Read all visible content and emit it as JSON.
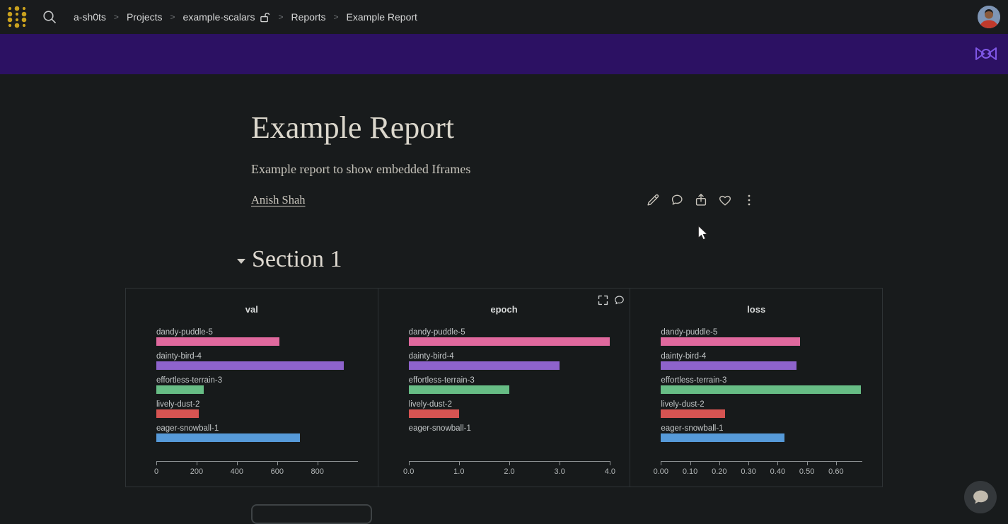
{
  "topnav": {
    "logo_icon": "wandb-dots-logo",
    "search_icon": "search-icon",
    "breadcrumb": [
      {
        "label": "a-sh0ts"
      },
      {
        "label": "Projects"
      },
      {
        "label": "example-scalars",
        "suffix_icon": "unlock-icon"
      },
      {
        "label": "Reports"
      },
      {
        "label": "Example Report",
        "current": true
      }
    ],
    "avatar_icon": "user-avatar"
  },
  "banner": {
    "background": "#2c1163",
    "icon": "wandb-bowtie-icon",
    "icon_color": "#7f57e6"
  },
  "report": {
    "title": "Example Report",
    "subtitle": "Example report to show embedded Iframes",
    "author": "Anish Shah",
    "actions": [
      {
        "name": "edit",
        "icon": "pencil-icon"
      },
      {
        "name": "comment",
        "icon": "comment-icon"
      },
      {
        "name": "share",
        "icon": "share-icon"
      },
      {
        "name": "like",
        "icon": "heart-icon"
      },
      {
        "name": "more",
        "icon": "kebab-icon"
      }
    ]
  },
  "section": {
    "title": "Section 1",
    "collapse_icon": "caret-down-icon"
  },
  "runs": [
    {
      "name": "dandy-puddle-5",
      "color": "#e0699e"
    },
    {
      "name": "dainty-bird-4",
      "color": "#8e63cc"
    },
    {
      "name": "effortless-terrain-3",
      "color": "#67bd85"
    },
    {
      "name": "lively-dust-2",
      "color": "#d65452"
    },
    {
      "name": "eager-snowball-1",
      "color": "#569ad9"
    }
  ],
  "chart_data": [
    {
      "type": "bar",
      "orientation": "horizontal",
      "title": "val",
      "categories": [
        "dandy-puddle-5",
        "dainty-bird-4",
        "effortless-terrain-3",
        "lively-dust-2",
        "eager-snowball-1"
      ],
      "values": [
        610,
        930,
        237,
        210,
        712
      ],
      "xlim": [
        0,
        1000
      ],
      "tick_values": [
        0,
        200,
        400,
        600,
        800
      ],
      "tick_labels": [
        "0",
        "200",
        "400",
        "600",
        "800"
      ],
      "grid": false,
      "legend": false
    },
    {
      "type": "bar",
      "orientation": "horizontal",
      "title": "epoch",
      "categories": [
        "dandy-puddle-5",
        "dainty-bird-4",
        "effortless-terrain-3",
        "lively-dust-2",
        "eager-snowball-1"
      ],
      "values": [
        4,
        3,
        2,
        1,
        0
      ],
      "xlim": [
        0,
        4
      ],
      "tick_values": [
        0,
        1,
        2,
        3,
        4
      ],
      "tick_labels": [
        "0.0",
        "1.0",
        "2.0",
        "3.0",
        "4.0"
      ],
      "grid": false,
      "legend": false,
      "hover_icons": [
        "fullscreen-icon",
        "comment-icon"
      ]
    },
    {
      "type": "bar",
      "orientation": "horizontal",
      "title": "loss",
      "categories": [
        "dandy-puddle-5",
        "dainty-bird-4",
        "effortless-terrain-3",
        "lively-dust-2",
        "eager-snowball-1"
      ],
      "values": [
        0.477,
        0.465,
        0.684,
        0.22,
        0.423
      ],
      "xlim": [
        0,
        0.69
      ],
      "tick_values": [
        0,
        0.1,
        0.2,
        0.3,
        0.4,
        0.5,
        0.6
      ],
      "tick_labels": [
        "0.00",
        "0.10",
        "0.20",
        "0.30",
        "0.40",
        "0.50",
        "0.60"
      ],
      "grid": false,
      "legend": false
    }
  ],
  "chat": {
    "icon": "chat-bubble-icon"
  },
  "colors": {
    "page_bg": "#181b1c",
    "topnav_bg": "#191b1d",
    "panel_border": "#2e3335",
    "logo_gold": "#c9a11e",
    "axis": "#8e9294"
  }
}
